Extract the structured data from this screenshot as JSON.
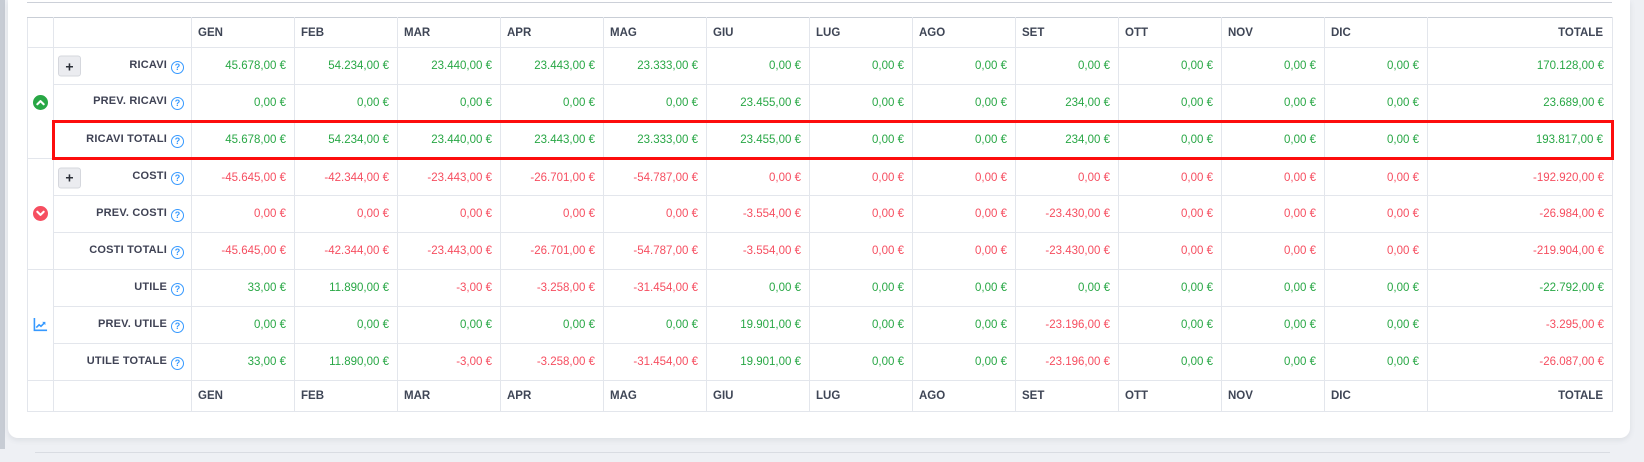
{
  "months": [
    "GEN",
    "FEB",
    "MAR",
    "APR",
    "MAG",
    "GIU",
    "LUG",
    "AGO",
    "SET",
    "OTT",
    "NOV",
    "DIC"
  ],
  "total_label": "TOTALE",
  "plus_label": "+",
  "help_label": "?",
  "colors": {
    "green": "#28a745",
    "red": "#f64e60",
    "blue": "#3699ff",
    "highlight_border": "#fd0d0d"
  },
  "groups": [
    {
      "icon": "circle-chevron-up-icon",
      "icon_color": "green",
      "rows": [
        {
          "label": "RICAVI",
          "plus": true,
          "highlight": false,
          "values": [
            "45.678,00 €",
            "54.234,00 €",
            "23.440,00 €",
            "23.443,00 €",
            "23.333,00 €",
            "0,00 €",
            "0,00 €",
            "0,00 €",
            "0,00 €",
            "0,00 €",
            "0,00 €",
            "0,00 €",
            "170.128,00 €"
          ],
          "value_colors": "g"
        },
        {
          "label": "PREV. RICAVI",
          "plus": false,
          "highlight": false,
          "values": [
            "0,00 €",
            "0,00 €",
            "0,00 €",
            "0,00 €",
            "0,00 €",
            "23.455,00 €",
            "0,00 €",
            "0,00 €",
            "234,00 €",
            "0,00 €",
            "0,00 €",
            "0,00 €",
            "23.689,00 €"
          ],
          "value_colors": "g"
        },
        {
          "label": "RICAVI TOTALI",
          "plus": false,
          "highlight": true,
          "values": [
            "45.678,00 €",
            "54.234,00 €",
            "23.440,00 €",
            "23.443,00 €",
            "23.333,00 €",
            "23.455,00 €",
            "0,00 €",
            "0,00 €",
            "234,00 €",
            "0,00 €",
            "0,00 €",
            "0,00 €",
            "193.817,00 €"
          ],
          "value_colors": "g"
        }
      ]
    },
    {
      "icon": "circle-chevron-down-icon",
      "icon_color": "red",
      "rows": [
        {
          "label": "COSTI",
          "plus": true,
          "highlight": false,
          "values": [
            "-45.645,00 €",
            "-42.344,00 €",
            "-23.443,00 €",
            "-26.701,00 €",
            "-54.787,00 €",
            "0,00 €",
            "0,00 €",
            "0,00 €",
            "0,00 €",
            "0,00 €",
            "0,00 €",
            "0,00 €",
            "-192.920,00 €"
          ],
          "value_colors": "r"
        },
        {
          "label": "PREV. COSTI",
          "plus": false,
          "highlight": false,
          "values": [
            "0,00 €",
            "0,00 €",
            "0,00 €",
            "0,00 €",
            "0,00 €",
            "-3.554,00 €",
            "0,00 €",
            "0,00 €",
            "-23.430,00 €",
            "0,00 €",
            "0,00 €",
            "0,00 €",
            "-26.984,00 €"
          ],
          "value_colors": "r"
        },
        {
          "label": "COSTI TOTALI",
          "plus": false,
          "highlight": false,
          "values": [
            "-45.645,00 €",
            "-42.344,00 €",
            "-23.443,00 €",
            "-26.701,00 €",
            "-54.787,00 €",
            "-3.554,00 €",
            "0,00 €",
            "0,00 €",
            "-23.430,00 €",
            "0,00 €",
            "0,00 €",
            "0,00 €",
            "-219.904,00 €"
          ],
          "value_colors": "r"
        }
      ]
    },
    {
      "icon": "chart-line-icon",
      "icon_color": "blue",
      "rows": [
        {
          "label": "UTILE",
          "plus": false,
          "highlight": false,
          "values": [
            "33,00 €",
            "11.890,00 €",
            "-3,00 €",
            "-3.258,00 €",
            "-31.454,00 €",
            "0,00 €",
            "0,00 €",
            "0,00 €",
            "0,00 €",
            "0,00 €",
            "0,00 €",
            "0,00 €",
            "-22.792,00 €"
          ],
          "value_colors": [
            "g",
            "g",
            "r",
            "r",
            "r",
            "g",
            "g",
            "g",
            "g",
            "g",
            "g",
            "g",
            "g"
          ]
        },
        {
          "label": "PREV. UTILE",
          "plus": false,
          "highlight": false,
          "values": [
            "0,00 €",
            "0,00 €",
            "0,00 €",
            "0,00 €",
            "0,00 €",
            "19.901,00 €",
            "0,00 €",
            "0,00 €",
            "-23.196,00 €",
            "0,00 €",
            "0,00 €",
            "0,00 €",
            "-3.295,00 €"
          ],
          "value_colors": [
            "g",
            "g",
            "g",
            "g",
            "g",
            "g",
            "g",
            "g",
            "r",
            "g",
            "g",
            "g",
            "r"
          ]
        },
        {
          "label": "UTILE TOTALE",
          "plus": false,
          "highlight": false,
          "values": [
            "33,00 €",
            "11.890,00 €",
            "-3,00 €",
            "-3.258,00 €",
            "-31.454,00 €",
            "19.901,00 €",
            "0,00 €",
            "0,00 €",
            "-23.196,00 €",
            "0,00 €",
            "0,00 €",
            "0,00 €",
            "-26.087,00 €"
          ],
          "value_colors": [
            "g",
            "g",
            "r",
            "r",
            "r",
            "g",
            "g",
            "g",
            "r",
            "g",
            "g",
            "g",
            "r"
          ]
        }
      ]
    }
  ]
}
